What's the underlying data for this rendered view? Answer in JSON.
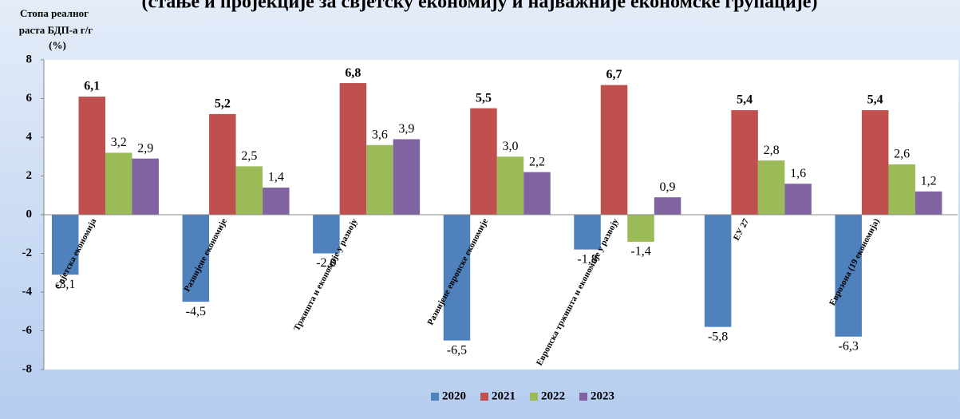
{
  "chart_data": {
    "type": "bar",
    "title": "(стање и пројекције за свјетску економију и најважније економске групације)",
    "ylabel": [
      "Стопа реалног",
      "раста БДП-а  г/г",
      "(%)"
    ],
    "categories": [
      "Свјетска економија",
      "Развијене економије",
      "Тржишта и економије у развоју",
      "Развијене европске економије",
      "Европска тржишта и економије у развоју",
      "ЕУ 27",
      "Еврозона (19 економија)"
    ],
    "series": [
      {
        "name": "2020",
        "color": "#4f81bd",
        "values": [
          -3.1,
          -4.5,
          -2.0,
          -6.5,
          -1.8,
          -5.8,
          -6.3
        ],
        "value_labels": [
          "-3,1",
          "-4,5",
          "-2,0",
          "-6,5",
          "-1,8",
          "-5,8",
          "-6,3"
        ]
      },
      {
        "name": "2021",
        "color": "#c0504d",
        "values": [
          6.1,
          5.2,
          6.8,
          5.5,
          6.7,
          5.4,
          5.4
        ],
        "value_labels": [
          "6,1",
          "5,2",
          "6,8",
          "5,5",
          "6,7",
          "5,4",
          "5,4"
        ]
      },
      {
        "name": "2022",
        "color": "#9bbb59",
        "values": [
          3.2,
          2.5,
          3.6,
          3.0,
          -1.4,
          2.8,
          2.6
        ],
        "value_labels": [
          "3,2",
          "2,5",
          "3,6",
          "3,0",
          "-1,4",
          "2,8",
          "2,6"
        ]
      },
      {
        "name": "2023",
        "color": "#8064a2",
        "values": [
          2.9,
          1.4,
          3.9,
          2.2,
          0.9,
          1.6,
          1.2
        ],
        "value_labels": [
          "2,9",
          "1,4",
          "3,9",
          "2,2",
          "0,9",
          "1,6",
          "1,2"
        ]
      }
    ],
    "ylim": [
      -8,
      8
    ],
    "yticks": [
      -8,
      -6,
      -4,
      -2,
      0,
      2,
      4,
      6,
      8
    ],
    "legend": "bottom"
  }
}
